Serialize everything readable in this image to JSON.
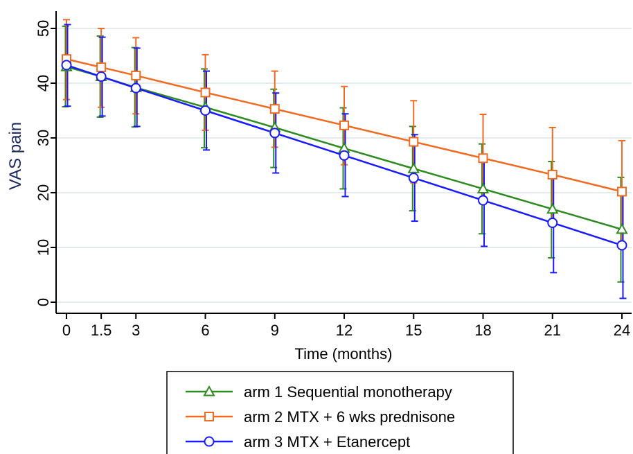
{
  "chart_data": {
    "type": "line",
    "xlabel": "Time (months)",
    "ylabel": "VAS pain",
    "x": [
      0,
      1.5,
      3,
      6,
      9,
      12,
      15,
      18,
      21,
      24
    ],
    "x_ticks": [
      "0",
      "1.5",
      "3",
      "6",
      "9",
      "12",
      "15",
      "18",
      "21",
      "24"
    ],
    "y_ticks": [
      "0",
      "10",
      "20",
      "30",
      "40",
      "50"
    ],
    "xlim": [
      0,
      24
    ],
    "ylim": [
      0,
      50
    ],
    "grid": true,
    "legend_position": "bottom",
    "series": [
      {
        "name": "arm 1 Sequential monotherapy",
        "color": "#2e8b1f",
        "marker": "triangle",
        "values": [
          43.0,
          41.2,
          39.2,
          35.6,
          31.9,
          28.1,
          24.4,
          20.7,
          17.0,
          13.3
        ],
        "lower": [
          35.7,
          33.8,
          32.0,
          28.2,
          24.6,
          20.7,
          16.7,
          12.5,
          8.1,
          3.7
        ],
        "upper": [
          50.4,
          48.6,
          46.5,
          42.6,
          38.9,
          35.5,
          32.1,
          28.9,
          25.7,
          22.8
        ]
      },
      {
        "name": "arm 2 MTX + 6 wks prednisone",
        "color": "#f26a21",
        "marker": "square",
        "values": [
          44.4,
          42.9,
          41.4,
          38.3,
          35.3,
          32.3,
          29.3,
          26.3,
          23.3,
          20.2
        ],
        "lower": [
          37.0,
          35.6,
          34.4,
          31.4,
          28.3,
          25.1,
          21.8,
          18.3,
          14.7,
          11.0
        ],
        "upper": [
          51.6,
          50.0,
          48.3,
          45.2,
          42.2,
          39.4,
          36.8,
          34.3,
          31.9,
          29.5
        ]
      },
      {
        "name": "arm 3 MTX + Etanercept",
        "color": "#1a1aff",
        "marker": "circle",
        "values": [
          43.3,
          41.2,
          39.1,
          35.0,
          30.9,
          26.8,
          22.7,
          18.6,
          14.5,
          10.4
        ],
        "lower": [
          35.8,
          34.0,
          32.1,
          27.8,
          23.6,
          19.3,
          14.8,
          10.2,
          5.4,
          0.7
        ],
        "upper": [
          50.7,
          48.4,
          46.4,
          42.2,
          38.2,
          34.4,
          30.6,
          27.0,
          23.5,
          20.1
        ]
      }
    ]
  }
}
